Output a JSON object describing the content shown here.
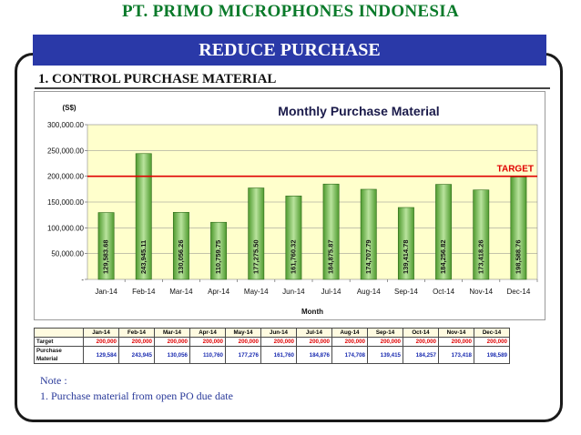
{
  "header": {
    "company": "PT. PRIMO MICROPHONES INDONESIA",
    "banner": "REDUCE PURCHASE",
    "section": "1. CONTROL PURCHASE MATERIAL"
  },
  "chart_data": {
    "type": "bar",
    "title": "Monthly Purchase Material",
    "ylabel": "(S$)",
    "xlabel": "Month",
    "ylim": [
      0,
      300000
    ],
    "yticks": [
      "-",
      "50,000.00",
      "100,000.00",
      "150,000.00",
      "200,000.00",
      "250,000.00",
      "300,000.00"
    ],
    "grid": true,
    "categories": [
      "Jan-14",
      "Feb-14",
      "Mar-14",
      "Apr-14",
      "May-14",
      "Jun-14",
      "Jul-14",
      "Aug-14",
      "Sep-14",
      "Oct-14",
      "Nov-14",
      "Dec-14"
    ],
    "values": [
      129583.68,
      243945.11,
      130056.26,
      110759.75,
      177275.5,
      161760.32,
      184875.87,
      174707.79,
      139414.78,
      184256.82,
      173418.26,
      198588.76
    ],
    "data_labels": [
      "129,583.68",
      "243,945.11",
      "130,056.26",
      "110,759.75",
      "177,275.50",
      "161,760.32",
      "184,875.87",
      "174,707.79",
      "139,414.78",
      "184,256.82",
      "173,418.26",
      "198,588.76"
    ],
    "target": 200000,
    "target_label": "TARGET",
    "colors": {
      "plot_bg": "#ffffcc",
      "bar": "#4e9a2e",
      "bar_light": "#b9e39d",
      "target": "#e00000",
      "title": "#1a1a4a"
    }
  },
  "table": {
    "months": [
      "Jan-14",
      "Feb-14",
      "Mar-14",
      "Apr-14",
      "May-14",
      "Jun-14",
      "Jul-14",
      "Aug-14",
      "Sep-14",
      "Oct-14",
      "Nov-14",
      "Dec-14"
    ],
    "target_label": "Target",
    "target_values": [
      "200,000",
      "200,000",
      "200,000",
      "200,000",
      "200,000",
      "200,000",
      "200,000",
      "200,000",
      "200,000",
      "200,000",
      "200,000",
      "200,000"
    ],
    "purchase_label": "Purchase Material",
    "purchase_values": [
      "129,584",
      "243,945",
      "130,056",
      "110,760",
      "177,276",
      "161,760",
      "184,876",
      "174,708",
      "139,415",
      "184,257",
      "173,418",
      "198,589"
    ]
  },
  "note": {
    "heading": "Note :",
    "line1": "1. Purchase material from open PO due date"
  }
}
